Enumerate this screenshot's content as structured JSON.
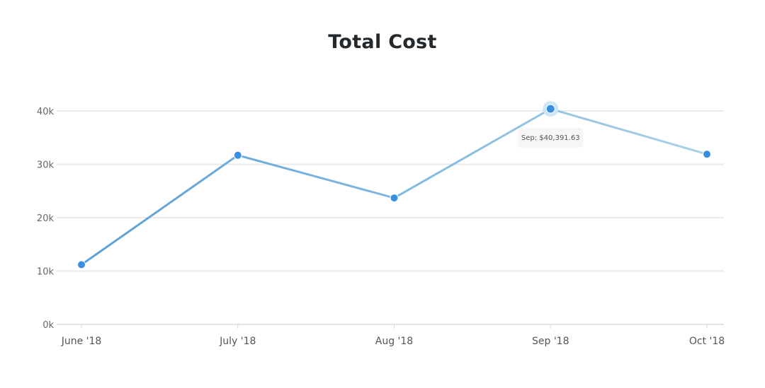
{
  "chart_data": {
    "type": "line",
    "title": "Total Cost",
    "xlabel": "",
    "ylabel": "",
    "categories": [
      "June '18",
      "July '18",
      "Aug '18",
      "Sep '18",
      "Oct '18"
    ],
    "values": [
      11200,
      31700,
      23700,
      40391.63,
      31900
    ],
    "ylim": [
      0,
      40000
    ],
    "yticks": [
      {
        "value": 0,
        "label": "0k"
      },
      {
        "value": 10000,
        "label": "10k"
      },
      {
        "value": 20000,
        "label": "20k"
      },
      {
        "value": 30000,
        "label": "30k"
      },
      {
        "value": 40000,
        "label": "40k"
      }
    ],
    "grid": true,
    "legend": "none",
    "highlighted_index": 3,
    "tooltip": "Sep: $40,391.63",
    "colors": {
      "line_start": "#5a9fd6",
      "line_end": "#a9d0e8",
      "marker": "#3a8ee0",
      "marker_halo": "#cfe6f6",
      "tooltip_bg": "#f6f6f6"
    }
  }
}
